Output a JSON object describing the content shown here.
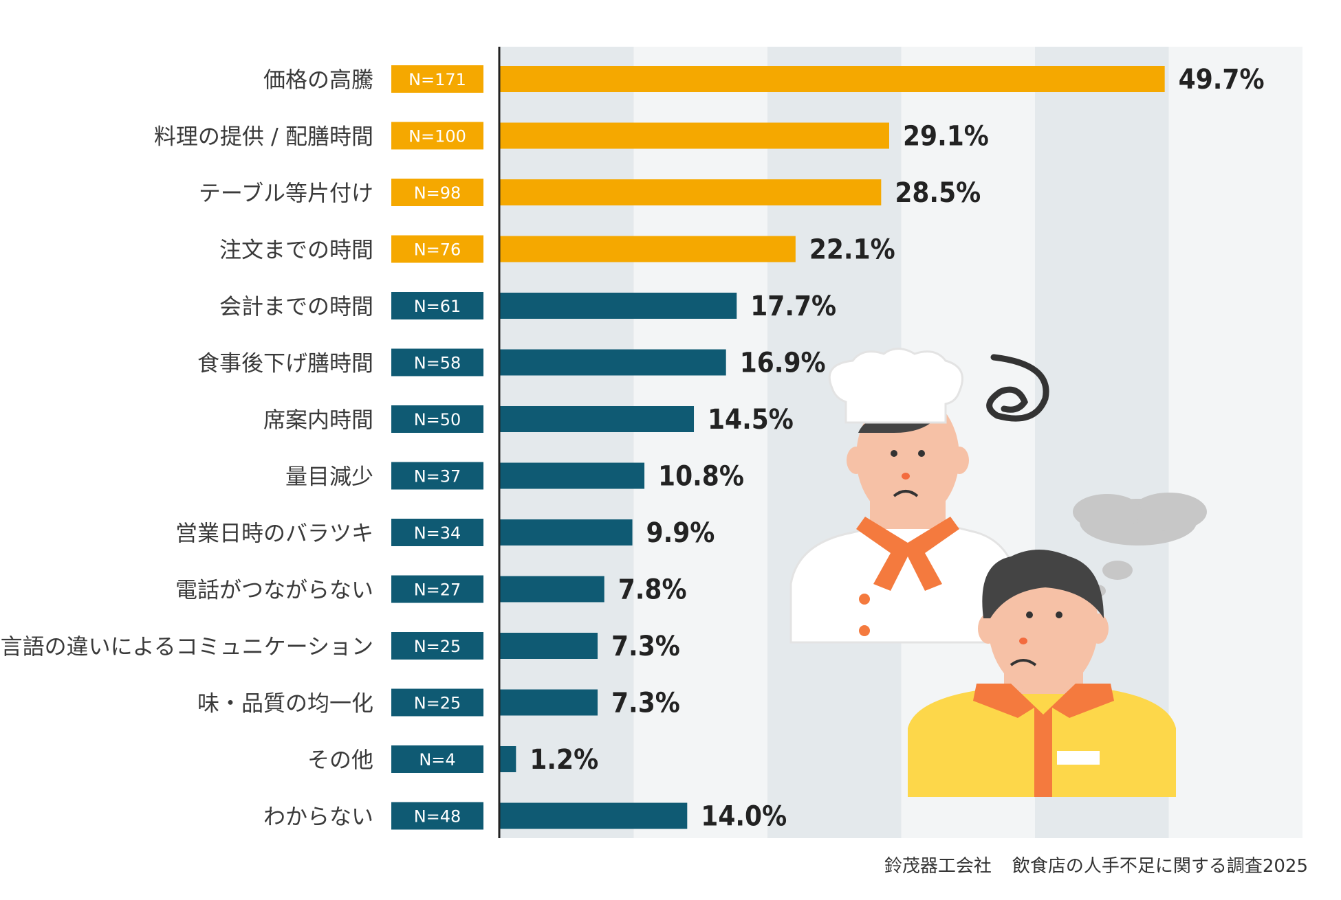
{
  "chart_data": {
    "type": "bar",
    "orientation": "horizontal",
    "x_range": [
      0,
      60
    ],
    "grid_bands": true,
    "categories": [
      "価格の高騰",
      "料理の提供 / 配膳時間",
      "テーブル等片付け",
      "注文までの時間",
      "会計までの時間",
      "食事後下げ膳時間",
      "席案内時間",
      "量目減少",
      "営業日時のバラツキ",
      "電話がつながらない",
      "言語の違いによるコミュニケーション",
      "味・品質の均一化",
      "その他",
      "わからない"
    ],
    "n_labels": [
      "N=171",
      "N=100",
      "N=98",
      "N=76",
      "N=61",
      "N=58",
      "N=50",
      "N=37",
      "N=34",
      "N=27",
      "N=25",
      "N=25",
      "N=4",
      "N=48"
    ],
    "values": [
      49.7,
      29.1,
      28.5,
      22.1,
      17.7,
      16.9,
      14.5,
      10.8,
      9.9,
      7.8,
      7.3,
      7.3,
      1.2,
      14.0
    ],
    "value_labels": [
      "49.7%",
      "29.1%",
      "28.5%",
      "22.1%",
      "17.7%",
      "16.9%",
      "14.5%",
      "10.8%",
      "9.9%",
      "7.8%",
      "7.3%",
      "7.3%",
      "1.2%",
      "14.0%"
    ],
    "highlighted": [
      true,
      true,
      true,
      true,
      false,
      false,
      false,
      false,
      false,
      false,
      false,
      false,
      false,
      false
    ],
    "colors": {
      "highlight": "#f5a800",
      "normal": "#0f5a73",
      "band_dark": "#e4e9ec",
      "band_light": "#f3f5f6",
      "axis": "#222222"
    }
  },
  "source": {
    "publisher": "鈴茂器工会社",
    "survey": "飲食店の人手不足に関する調査2025"
  }
}
